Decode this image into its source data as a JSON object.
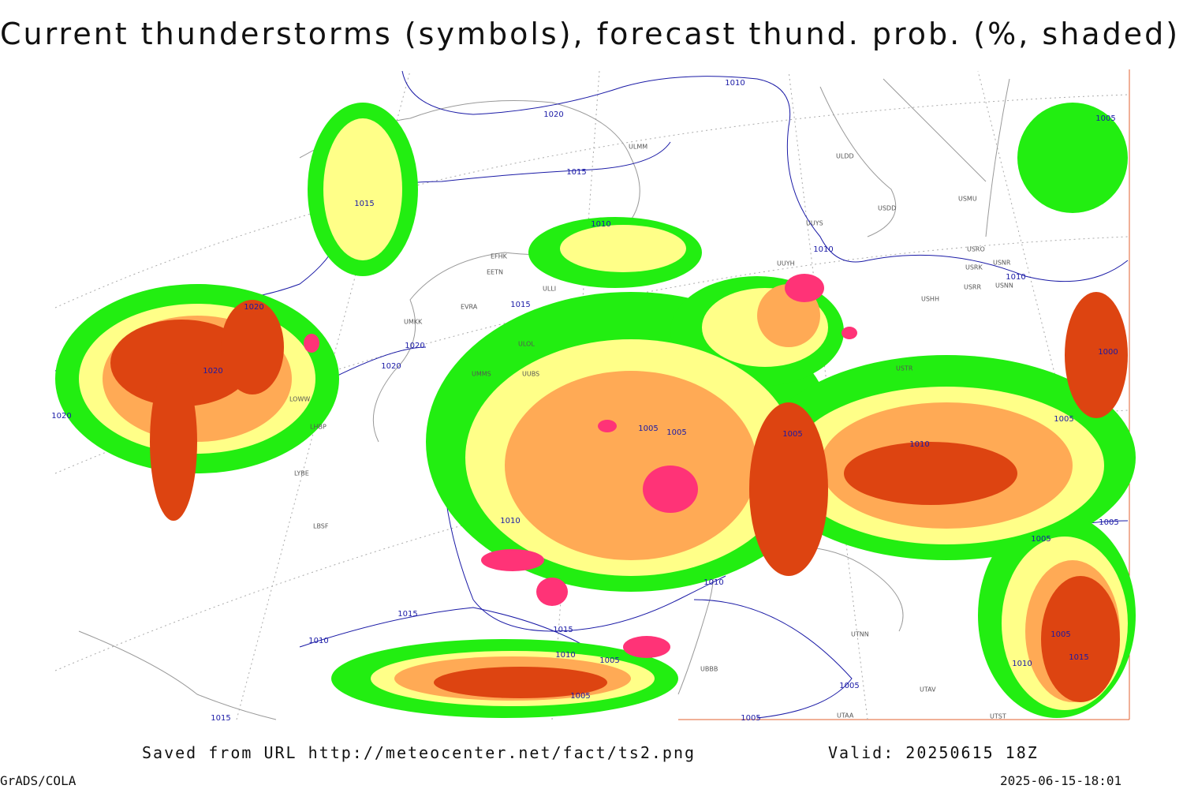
{
  "header": {
    "title": "Current thunderstorms (symbols), forecast thund. prob. (%, shaded)"
  },
  "map": {
    "isobar_labels": [
      "1010",
      "1020",
      "1015",
      "1015",
      "1010",
      "1010",
      "1010",
      "1005",
      "1020",
      "1015",
      "1020",
      "1020",
      "1020",
      "1000",
      "1005",
      "1005",
      "1005",
      "1005",
      "1010",
      "1010",
      "1005",
      "1005",
      "1010",
      "1015",
      "1015",
      "1010",
      "1010",
      "1005",
      "1005",
      "1015",
      "1010",
      "1005",
      "1005",
      "1015",
      "1005",
      "1020"
    ],
    "stations": [
      "ULMM",
      "ULDD",
      "USMU",
      "USDD",
      "UUYS",
      "EFHK",
      "EETN",
      "ULLI",
      "USRO",
      "USRK",
      "USNR",
      "USRR",
      "USNN",
      "UUYH",
      "USHH",
      "EVRA",
      "UMKK",
      "ULOL",
      "UMMS",
      "UUBS",
      "LOWW",
      "LHBP",
      "LYBE",
      "LBSF",
      "USTR",
      "UTNN",
      "UBBB",
      "UTAA",
      "UTST",
      "UTAV"
    ]
  },
  "footer": {
    "source": "Saved from URL http://meteocenter.net/fact/ts2.png",
    "valid": "Valid: 20250615 18Z",
    "software": "GrADS/COLA",
    "timestamp": "2025-06-15-18:01"
  }
}
